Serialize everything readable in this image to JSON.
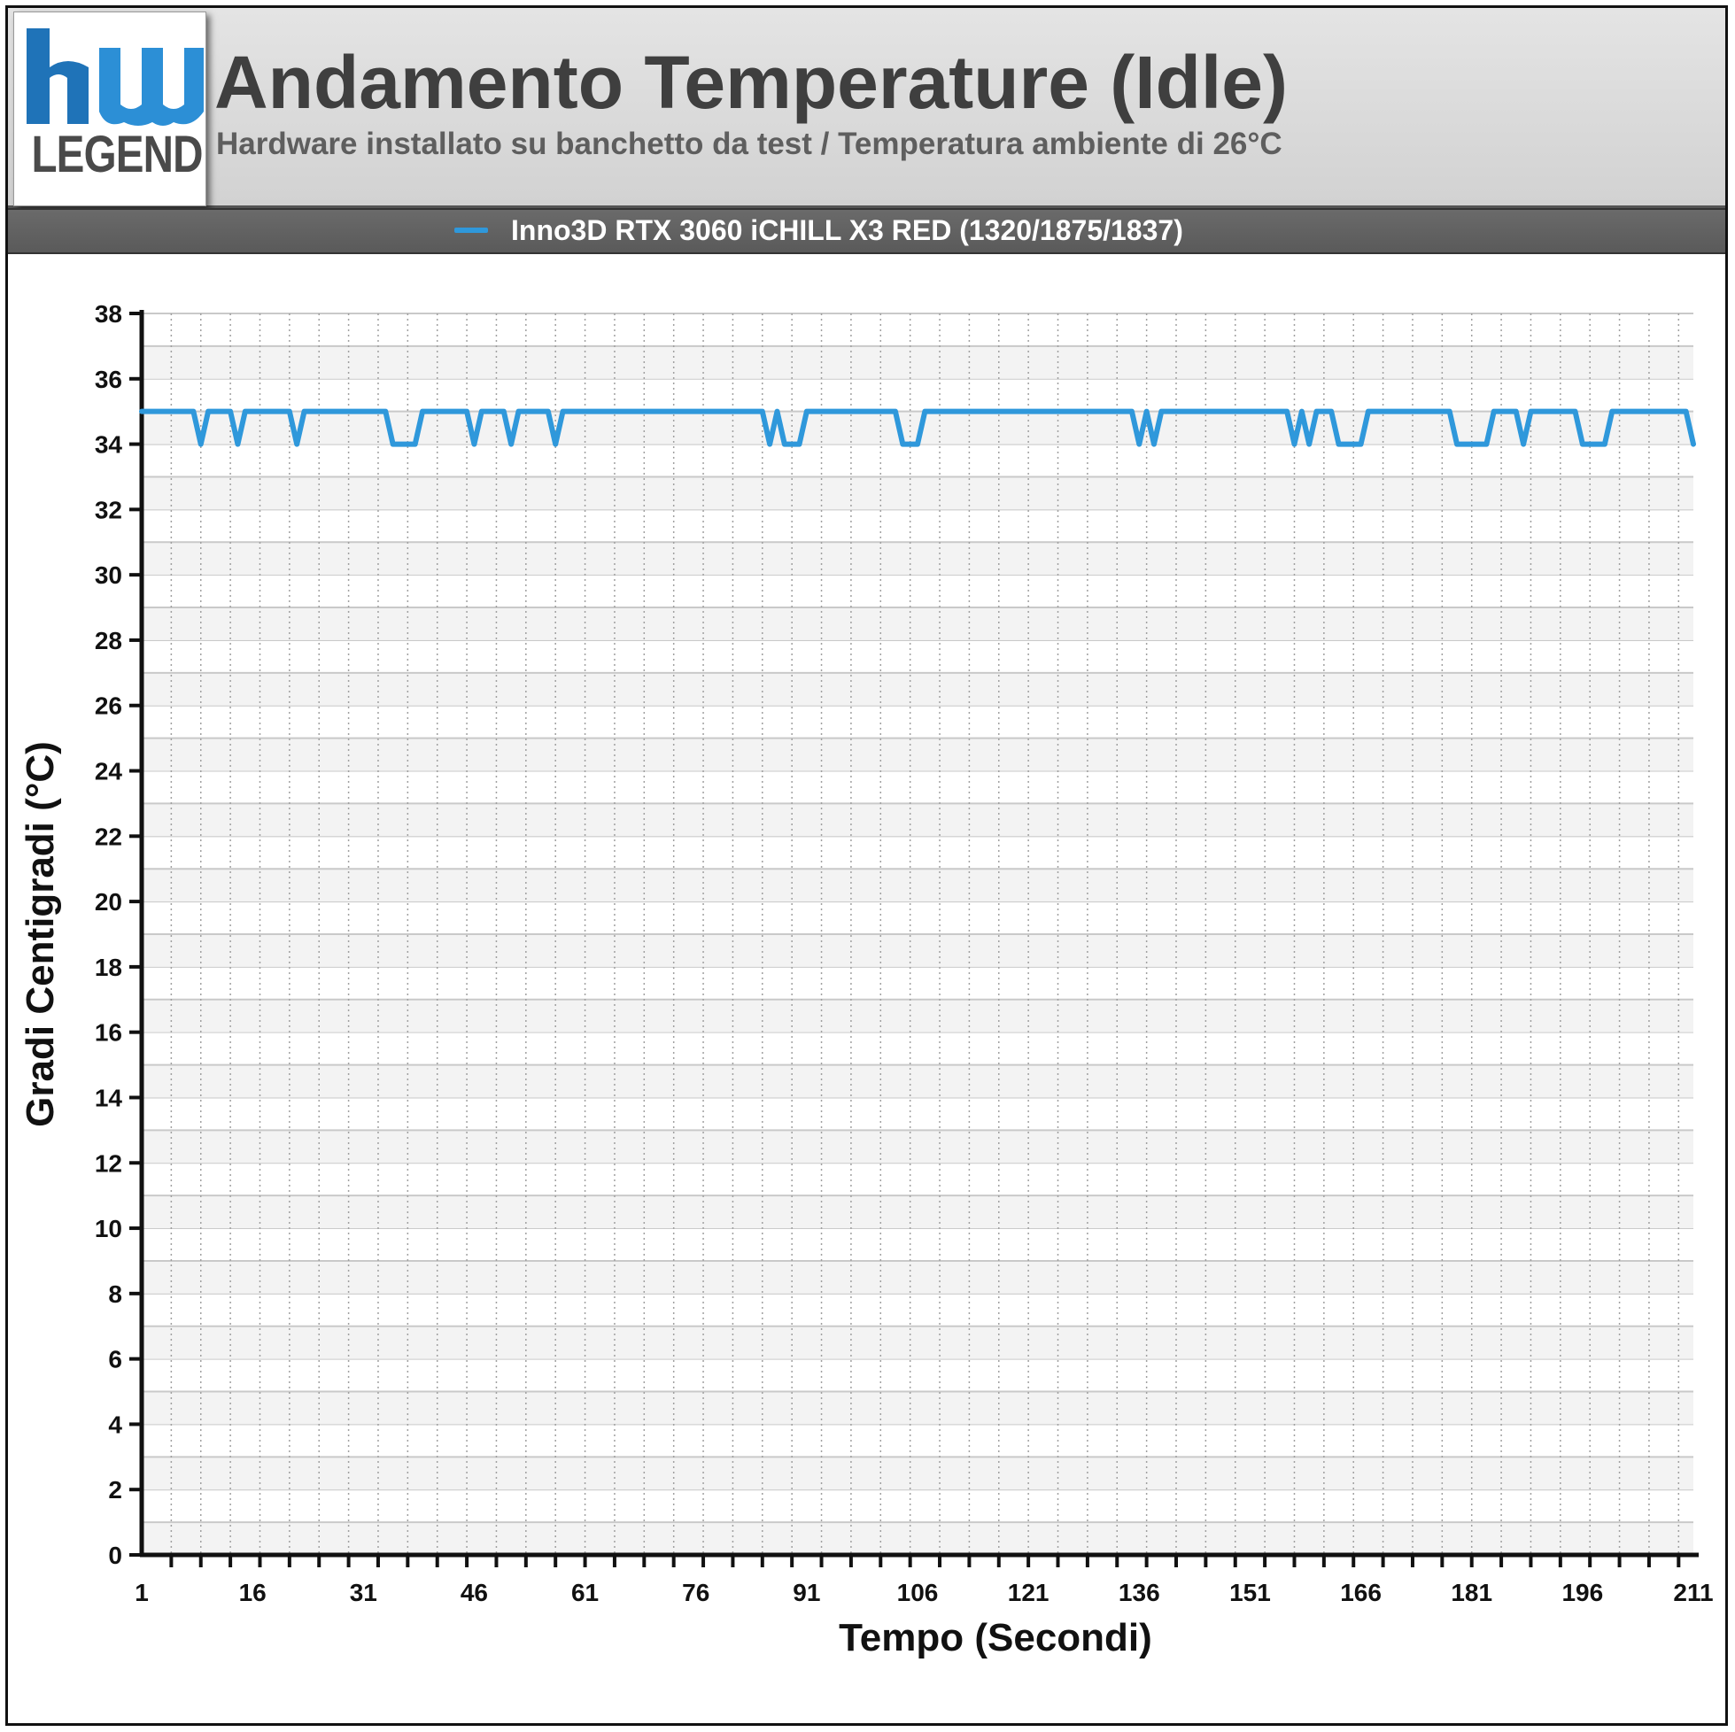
{
  "header": {
    "logo_text": "LEGEND",
    "title": "Andamento Temperature (Idle)",
    "subtitle": "Hardware installato su banchetto da test / Temperatura ambiente di 26°C"
  },
  "colors": {
    "series": "#2f98db",
    "logo_blue": "#1f73b8",
    "header_bg": "#d9d9d9",
    "legend_bg": "#636363"
  },
  "chart_data": {
    "type": "line",
    "xlabel": "Tempo (Secondi)",
    "ylabel": "Gradi Centigradi (°C)",
    "ylim": [
      0,
      38
    ],
    "xlim": [
      1,
      211
    ],
    "y_ticks": [
      "0",
      "2",
      "4",
      "6",
      "8",
      "10",
      "12",
      "14",
      "16",
      "18",
      "20",
      "22",
      "24",
      "26",
      "28",
      "30",
      "32",
      "34",
      "36",
      "38"
    ],
    "x_ticks": [
      "1",
      "16",
      "31",
      "46",
      "61",
      "76",
      "91",
      "106",
      "121",
      "136",
      "151",
      "166",
      "181",
      "196",
      "211"
    ],
    "grid": true,
    "legend_position": "top",
    "series": [
      {
        "name": "Inno3D RTX 3060 iCHILL X3 RED (1320/1875/1837)",
        "points": [
          [
            1,
            35
          ],
          [
            8,
            35
          ],
          [
            9,
            34
          ],
          [
            10,
            35
          ],
          [
            13,
            35
          ],
          [
            14,
            34
          ],
          [
            15,
            35
          ],
          [
            21,
            35
          ],
          [
            22,
            34
          ],
          [
            23,
            35
          ],
          [
            34,
            35
          ],
          [
            35,
            34
          ],
          [
            38,
            34
          ],
          [
            39,
            35
          ],
          [
            45,
            35
          ],
          [
            46,
            34
          ],
          [
            47,
            35
          ],
          [
            50,
            35
          ],
          [
            51,
            34
          ],
          [
            52,
            35
          ],
          [
            56,
            35
          ],
          [
            57,
            34
          ],
          [
            58,
            35
          ],
          [
            85,
            35
          ],
          [
            86,
            34
          ],
          [
            87,
            35
          ],
          [
            88,
            34
          ],
          [
            90,
            34
          ],
          [
            91,
            35
          ],
          [
            103,
            35
          ],
          [
            104,
            34
          ],
          [
            106,
            34
          ],
          [
            107,
            35
          ],
          [
            135,
            35
          ],
          [
            136,
            34
          ],
          [
            137,
            35
          ],
          [
            138,
            34
          ],
          [
            139,
            35
          ],
          [
            156,
            35
          ],
          [
            157,
            34
          ],
          [
            158,
            35
          ],
          [
            159,
            34
          ],
          [
            160,
            35
          ],
          [
            162,
            35
          ],
          [
            163,
            34
          ],
          [
            166,
            34
          ],
          [
            167,
            35
          ],
          [
            178,
            35
          ],
          [
            179,
            34
          ],
          [
            183,
            34
          ],
          [
            184,
            35
          ],
          [
            187,
            35
          ],
          [
            188,
            34
          ],
          [
            189,
            35
          ],
          [
            195,
            35
          ],
          [
            196,
            34
          ],
          [
            199,
            34
          ],
          [
            200,
            35
          ],
          [
            210,
            35
          ],
          [
            211,
            34
          ]
        ]
      }
    ]
  }
}
